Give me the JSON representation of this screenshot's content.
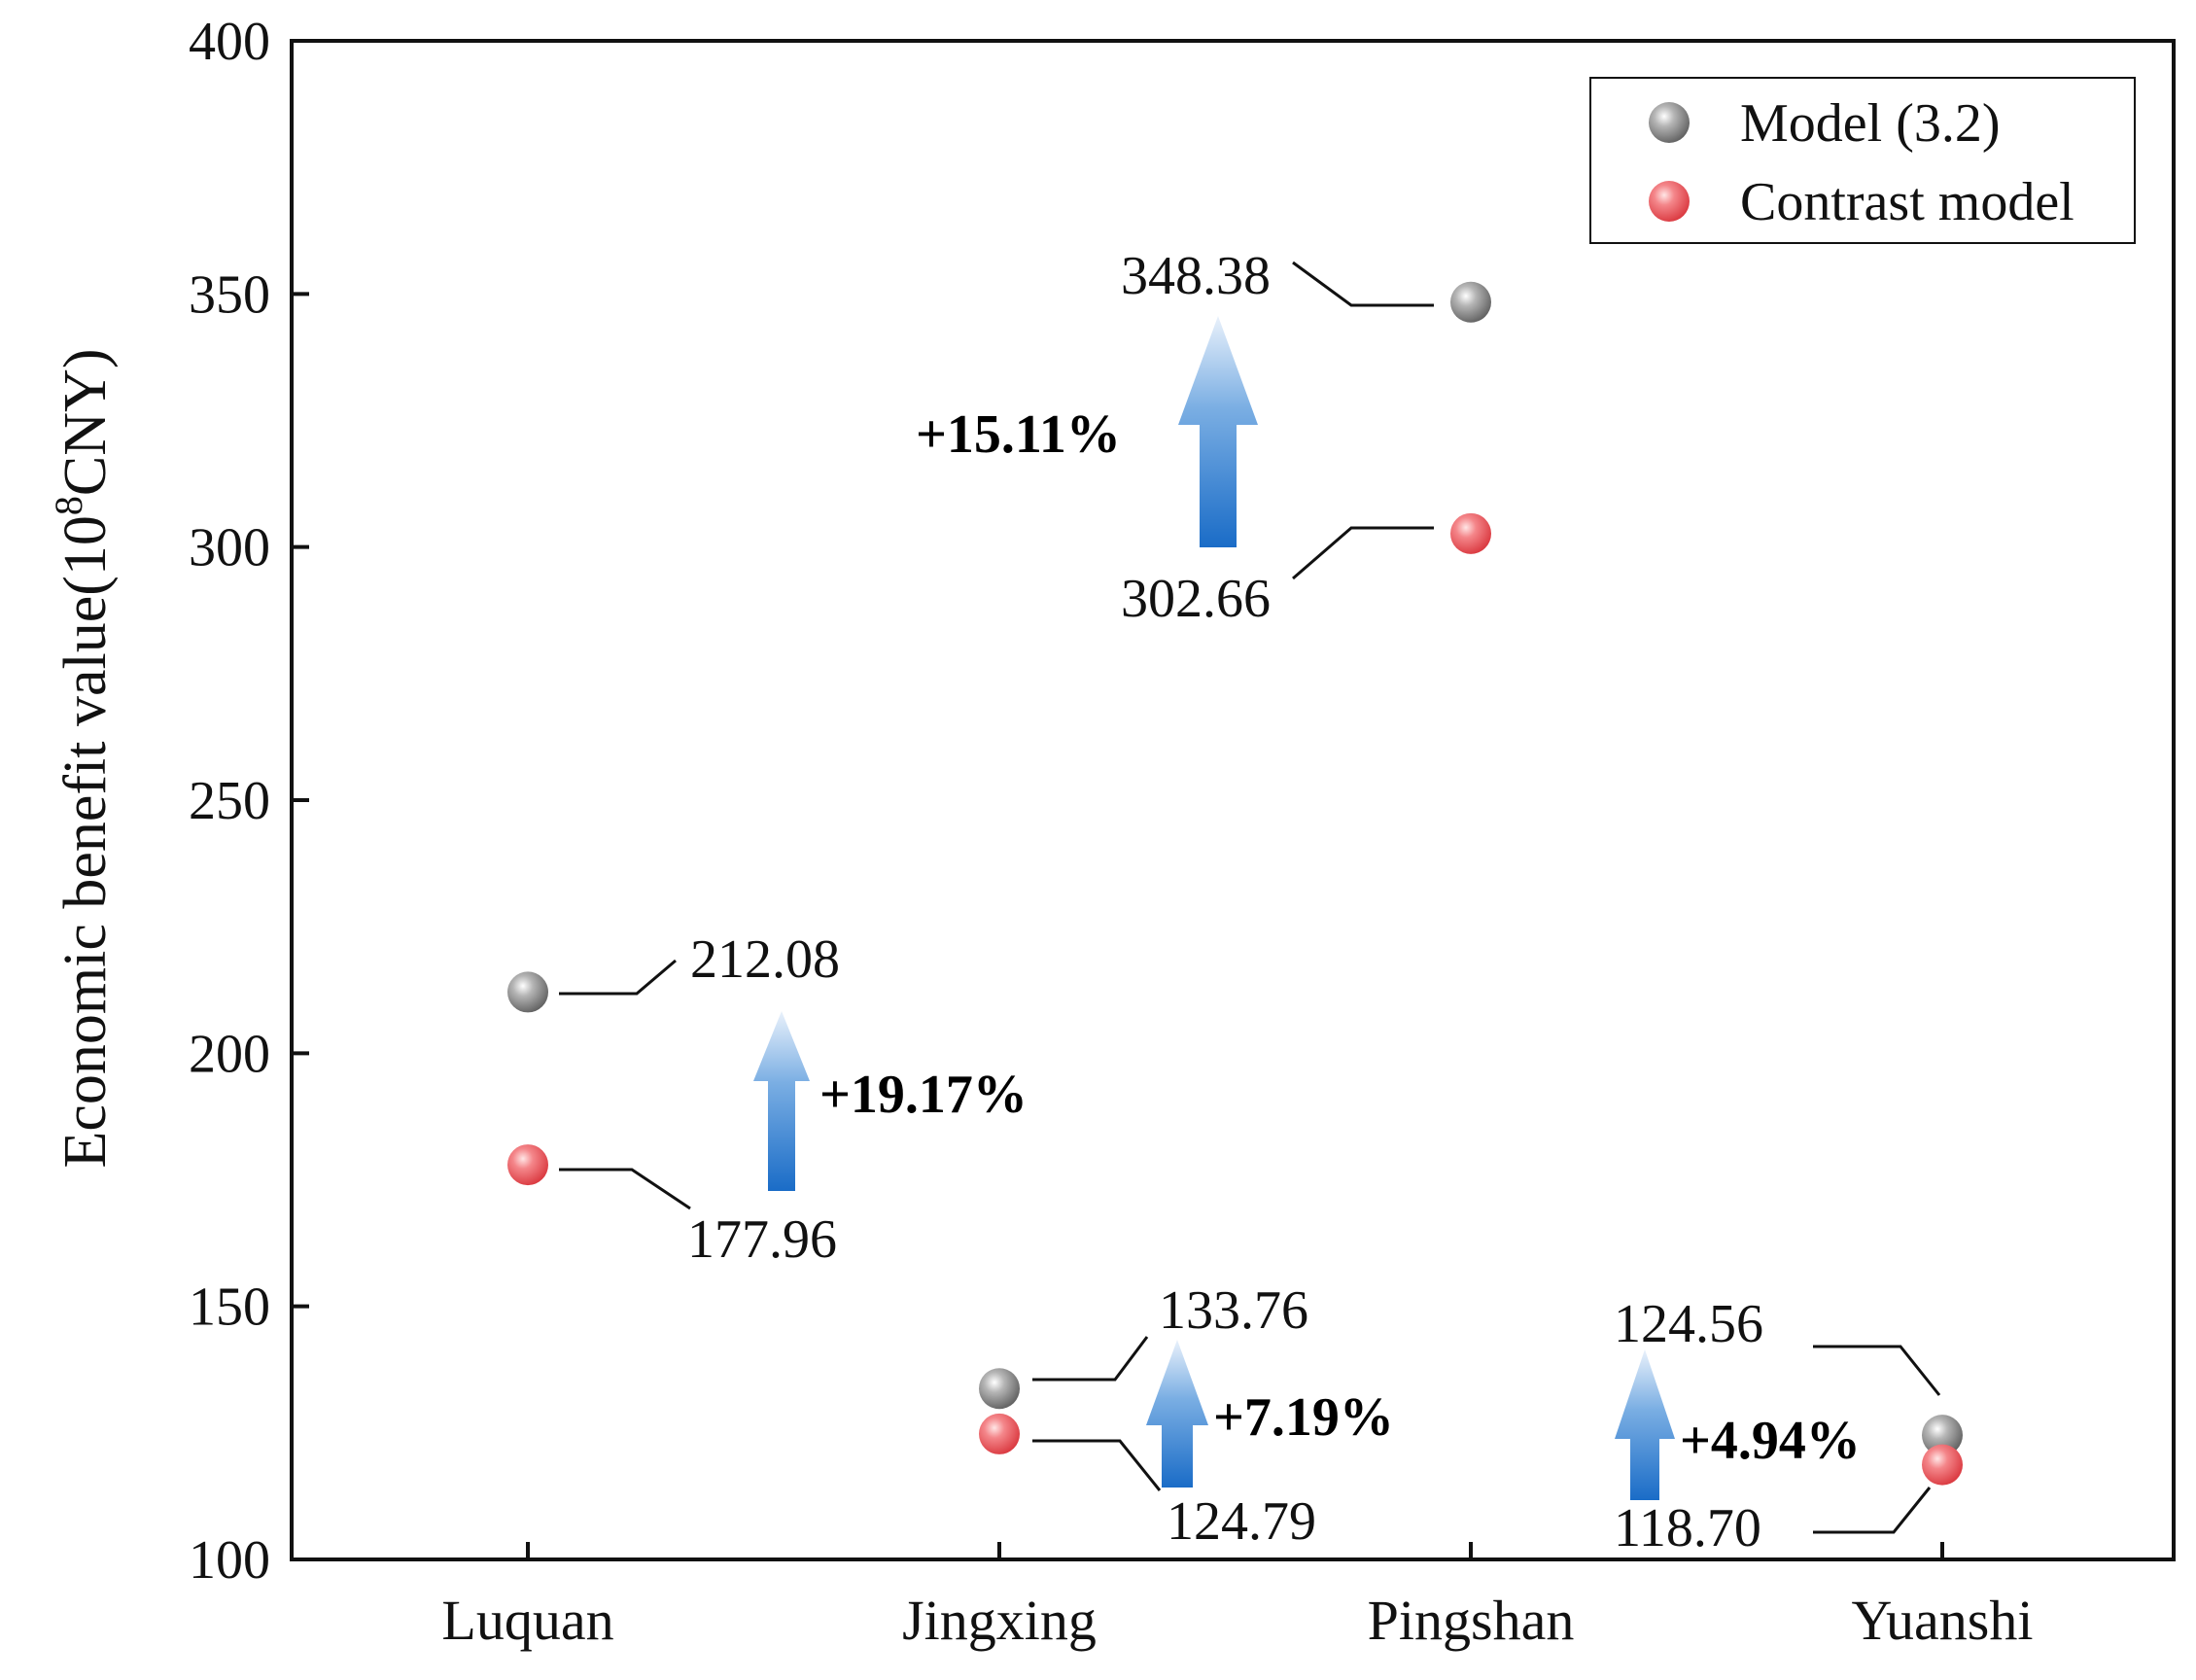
{
  "chart_data": {
    "type": "scatter",
    "ylabel": "Economic benefit value(10",
    "ylabel_sup": "8",
    "ylabel_suffix": "CNY)",
    "ylim": [
      100,
      400
    ],
    "yticks": [
      "100",
      "150",
      "200",
      "250",
      "300",
      "350",
      "400"
    ],
    "categories": [
      "Luquan",
      "Jingxing",
      "Pingshan",
      "Yuanshi"
    ],
    "series": [
      {
        "name": "Model (3.2)",
        "color": "#8c8c8c",
        "values": [
          212.08,
          133.76,
          348.38,
          124.56
        ]
      },
      {
        "name": "Contrast model",
        "color": "#f0676b",
        "values": [
          177.96,
          124.79,
          302.66,
          118.7
        ]
      }
    ],
    "model_labels": [
      "212.08",
      "133.76",
      "348.38",
      "124.56"
    ],
    "contrast_labels": [
      "177.96",
      "124.79",
      "302.66",
      "118.70"
    ],
    "increase_labels": [
      "+19.17%",
      "+7.19%",
      "+15.11%",
      "+4.94%"
    ],
    "increase_color": "#e06b1e",
    "legend": {
      "position": "top-right",
      "entries": [
        "Model (3.2)",
        "Contrast model"
      ]
    },
    "grid": false
  }
}
